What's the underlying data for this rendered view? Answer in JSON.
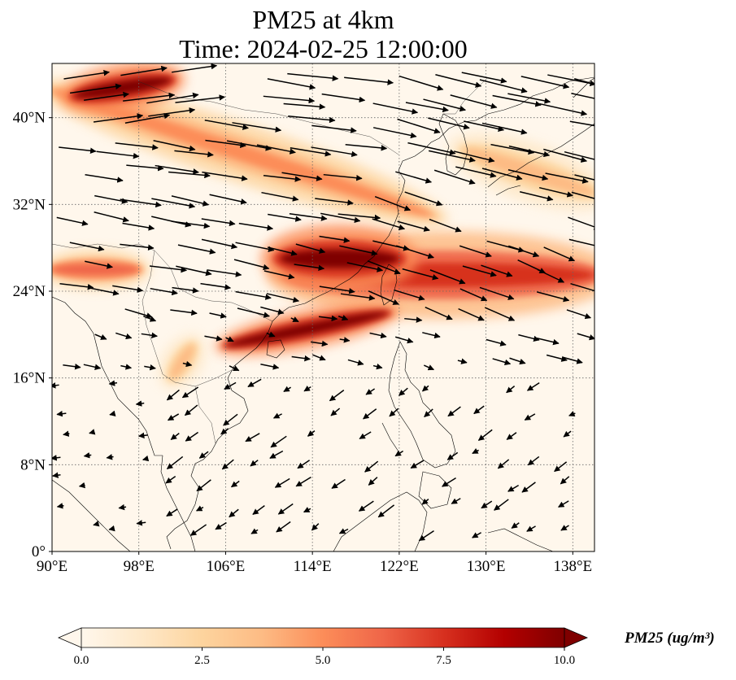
{
  "title": {
    "line1": "PM25 at 4km",
    "line2": "Time: 2024-02-25 12:00:00"
  },
  "map": {
    "extent_lon": [
      90,
      140
    ],
    "extent_lat": [
      0,
      45
    ],
    "gridlines": "dotted grey",
    "lon_ticks": [
      {
        "value": 90,
        "label": "90°E"
      },
      {
        "value": 98,
        "label": "98°E"
      },
      {
        "value": 106,
        "label": "106°E"
      },
      {
        "value": 114,
        "label": "114°E"
      },
      {
        "value": 122,
        "label": "122°E"
      },
      {
        "value": 130,
        "label": "130°E"
      },
      {
        "value": 138,
        "label": "138°E"
      }
    ],
    "lat_ticks": [
      {
        "value": 0,
        "label": "0°"
      },
      {
        "value": 8,
        "label": "8°N"
      },
      {
        "value": 16,
        "label": "16°N"
      },
      {
        "value": 24,
        "label": "24°N"
      },
      {
        "value": 32,
        "label": "32°N"
      },
      {
        "value": 40,
        "label": "40°N"
      }
    ],
    "plumes": [
      {
        "name": "east-china-sea-band",
        "lon_from": 112,
        "lat_from": 25.5,
        "lon_to": 140,
        "lat_to": 25.5,
        "lat_width": 4.5,
        "level": 8
      },
      {
        "name": "yangtze-core",
        "lon_from": 111,
        "lat_from": 27,
        "lon_to": 122,
        "lat_to": 27,
        "lat_width": 3.5,
        "level": 10
      },
      {
        "name": "south-china-sea-streak",
        "lon_from": 106,
        "lat_from": 19,
        "lon_to": 121,
        "lat_to": 22,
        "lat_width": 2,
        "level": 10
      },
      {
        "name": "northern-band",
        "lon_from": 90,
        "lat_from": 42.5,
        "lon_to": 125,
        "lat_to": 31,
        "lat_width": 3,
        "level": 5
      },
      {
        "name": "northwest-core",
        "lon_from": 92,
        "lat_from": 42,
        "lon_to": 101,
        "lat_to": 43.5,
        "lat_width": 2.5,
        "level": 10
      },
      {
        "name": "tibet-patch",
        "lon_from": 90,
        "lat_from": 26,
        "lon_to": 98,
        "lat_to": 26,
        "lat_width": 2,
        "level": 6
      },
      {
        "name": "japan-band",
        "lon_from": 128,
        "lat_from": 37,
        "lon_to": 140,
        "lat_to": 33,
        "lat_width": 3,
        "level": 3.5
      },
      {
        "name": "indochina-patch",
        "lon_from": 101,
        "lat_from": 16,
        "lon_to": 103,
        "lat_to": 19,
        "lat_width": 2,
        "level": 4
      }
    ],
    "wind_vectors": "black arrows, westerly in the north, north-easterly south of 20°N"
  },
  "colorbar": {
    "label": "PM25 (ug/m³)",
    "colormap": "OrRd",
    "colors": [
      "#fff7ec",
      "#fee8c8",
      "#fdd49e",
      "#fdbb84",
      "#fc8d59",
      "#ef6548",
      "#d7301f",
      "#b30000",
      "#7f0000"
    ],
    "ticks": [
      {
        "value": 0,
        "label": "0.0"
      },
      {
        "value": 2.5,
        "label": "2.5"
      },
      {
        "value": 5,
        "label": "5.0"
      },
      {
        "value": 7.5,
        "label": "7.5"
      },
      {
        "value": 10,
        "label": "10.0"
      }
    ],
    "range": [
      0,
      10
    ],
    "extend": "both"
  }
}
